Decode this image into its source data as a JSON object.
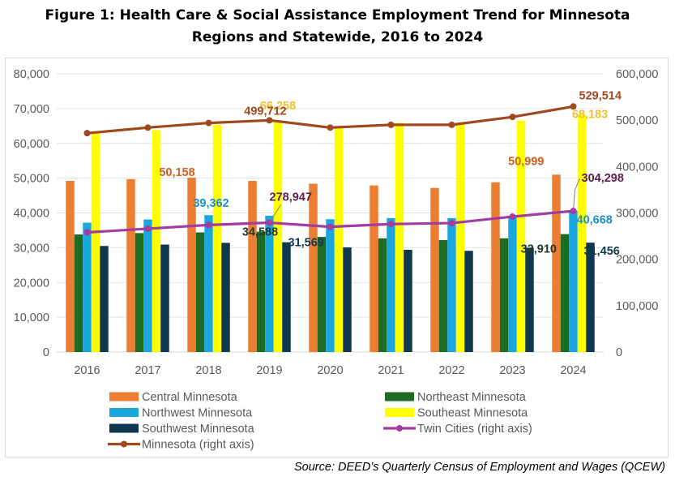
{
  "title_line1": "Figure 1:  Health Care & Social Assistance Employment Trend for Minnesota",
  "title_line2": "Regions and Statewide, 2016 to 2024",
  "source": "Source:  DEED’s Quarterly Census of Employment and Wages (QCEW)",
  "chart_data": {
    "type": "bar",
    "categories": [
      "2016",
      "2017",
      "2018",
      "2019",
      "2020",
      "2021",
      "2022",
      "2023",
      "2024"
    ],
    "left_axis": {
      "ylim": [
        0,
        80000
      ],
      "ticks": [
        "0",
        "10,000",
        "20,000",
        "30,000",
        "40,000",
        "50,000",
        "60,000",
        "70,000",
        "80,000"
      ]
    },
    "right_axis": {
      "ylim": [
        0,
        600000
      ],
      "ticks": [
        "0",
        "100,000",
        "200,000",
        "300,000",
        "400,000",
        "500,000",
        "600,000"
      ]
    },
    "grid": true,
    "series": [
      {
        "name": "Central Minnesota",
        "type": "bar",
        "axis": "left",
        "color": "#ED7D31",
        "values": [
          49200,
          49700,
          50158,
          49200,
          48400,
          47900,
          47200,
          48800,
          50999
        ]
      },
      {
        "name": "Northeast Minnesota",
        "type": "bar",
        "axis": "left",
        "color": "#1E6B24",
        "values": [
          33800,
          34200,
          34400,
          34588,
          33100,
          32700,
          32200,
          32700,
          33910
        ]
      },
      {
        "name": "Northwest Minnesota",
        "type": "bar",
        "axis": "left",
        "color": "#1AA7DF",
        "values": [
          37200,
          38100,
          39362,
          39200,
          38200,
          38500,
          38500,
          39200,
          40668
        ]
      },
      {
        "name": "Southeast Minnesota",
        "type": "bar",
        "axis": "left",
        "color": "#FFFF00",
        "values": [
          63000,
          63800,
          65300,
          66258,
          64300,
          65900,
          65700,
          66500,
          68183
        ]
      },
      {
        "name": "Southwest Minnesota",
        "type": "bar",
        "axis": "left",
        "color": "#10384F",
        "values": [
          30500,
          30900,
          31400,
          31569,
          30100,
          29400,
          29100,
          30000,
          31456
        ]
      },
      {
        "name": "Twin Cities (right axis)",
        "type": "line",
        "axis": "right",
        "color": "#A23CA0",
        "values": [
          258000,
          266000,
          274000,
          278947,
          270000,
          276000,
          278000,
          292000,
          304298
        ]
      },
      {
        "name": "Minnesota (right axis)",
        "type": "line",
        "axis": "right",
        "color": "#A0481F",
        "values": [
          472000,
          484000,
          494000,
          499712,
          484000,
          490000,
          490000,
          507000,
          529514
        ]
      }
    ],
    "data_labels": [
      {
        "series": "Central Minnesota",
        "category": "2018",
        "text": "50,158",
        "color": "#D06020"
      },
      {
        "series": "Northwest Minnesota",
        "category": "2018",
        "text": "39,362",
        "color": "#1A92C6"
      },
      {
        "series": "Twin Cities (right axis)",
        "category": "2019",
        "text": "278,947",
        "color": "#5E1E4E"
      },
      {
        "series": "Northeast Minnesota",
        "category": "2019",
        "text": "34,588",
        "color": "#203A28"
      },
      {
        "series": "Southwest Minnesota",
        "category": "2019",
        "text": "31,569",
        "color": "#10384F"
      },
      {
        "series": "Southeast Minnesota",
        "category": "2019",
        "text": "66,258",
        "color": "#F2C12E"
      },
      {
        "series": "Minnesota (right axis)",
        "category": "2019",
        "text": "499,712",
        "color": "#A0481F"
      },
      {
        "series": "Minnesota (right axis)",
        "category": "2024",
        "text": "529,514",
        "color": "#A0481F"
      },
      {
        "series": "Southeast Minnesota",
        "category": "2024",
        "text": "68,183",
        "color": "#F2C12E"
      },
      {
        "series": "Central Minnesota",
        "category": "2024",
        "text": "50,999",
        "color": "#D06020"
      },
      {
        "series": "Twin Cities (right axis)",
        "category": "2024",
        "text": "304,298",
        "color": "#5E1E4E"
      },
      {
        "series": "Northwest Minnesota",
        "category": "2024",
        "text": "40,668",
        "color": "#1A92C6"
      },
      {
        "series": "Southwest Minnesota",
        "category": "2024",
        "text": "31,456",
        "color": "#10384F"
      },
      {
        "series": "Northeast Minnesota",
        "category": "2024",
        "text": "33,910",
        "color": "#203A28"
      }
    ],
    "legend": {
      "placement": "bottom",
      "entries": [
        "Central Minnesota",
        "Northeast Minnesota",
        "Northwest Minnesota",
        "Southeast Minnesota",
        "Southwest Minnesota",
        "Twin Cities (right axis)",
        "Minnesota (right axis)"
      ]
    }
  }
}
